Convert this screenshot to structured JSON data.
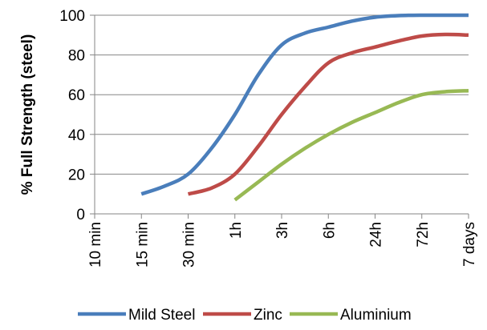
{
  "chart_data": {
    "type": "line",
    "title": "",
    "xlabel": "",
    "ylabel": "% Full Strength (steel)",
    "categories": [
      "10 min",
      "15 min",
      "30 min",
      "1h",
      "3h",
      "6h",
      "24h",
      "72h",
      "7 days"
    ],
    "ylim": [
      0,
      100
    ],
    "yticks": [
      0,
      20,
      40,
      60,
      80,
      100
    ],
    "grid": "horizontal",
    "legend_position": "bottom",
    "series": [
      {
        "name": "Mild Steel",
        "color": "#4A7EBB",
        "points": [
          [
            1,
            10
          ],
          [
            1.5,
            14
          ],
          [
            2,
            20
          ],
          [
            2.5,
            33
          ],
          [
            3,
            50
          ],
          [
            3.5,
            70
          ],
          [
            4,
            85
          ],
          [
            4.5,
            91
          ],
          [
            5,
            94
          ],
          [
            5.5,
            97
          ],
          [
            6,
            99
          ],
          [
            6.5,
            99.8
          ],
          [
            7,
            100
          ],
          [
            8,
            100
          ]
        ]
      },
      {
        "name": "Zinc",
        "color": "#BE4B48",
        "points": [
          [
            2,
            10
          ],
          [
            2.5,
            13
          ],
          [
            3,
            20
          ],
          [
            3.5,
            34
          ],
          [
            4,
            50
          ],
          [
            4.5,
            64
          ],
          [
            5,
            76
          ],
          [
            5.5,
            81
          ],
          [
            6,
            84
          ],
          [
            6.5,
            87
          ],
          [
            7,
            89.5
          ],
          [
            7.5,
            90.3
          ],
          [
            8,
            90
          ]
        ]
      },
      {
        "name": "Aluminium",
        "color": "#98B954",
        "points": [
          [
            3,
            7
          ],
          [
            3.5,
            16
          ],
          [
            4,
            25
          ],
          [
            4.5,
            33
          ],
          [
            5,
            40
          ],
          [
            5.5,
            46
          ],
          [
            6,
            51
          ],
          [
            6.5,
            56
          ],
          [
            7,
            60
          ],
          [
            7.5,
            61.5
          ],
          [
            8,
            62
          ]
        ]
      }
    ]
  }
}
